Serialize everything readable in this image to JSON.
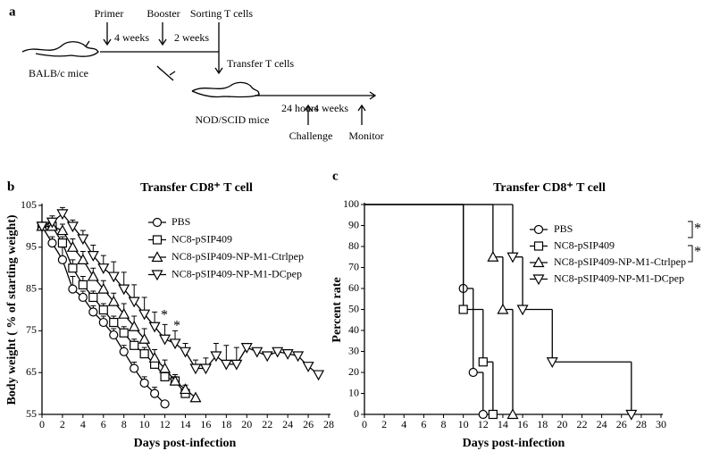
{
  "diagram": {
    "panel": "a",
    "primer": "Primer",
    "booster": "Booster",
    "sorting": "Sorting T cells",
    "interval1": "4 weeks",
    "interval2": "2 weeks",
    "transfer": "Transfer T cells",
    "donor": "BALB/c mice",
    "recipient": "NOD/SCID mice",
    "interval3": "24 hours",
    "interval4": "4 weeks",
    "challenge": "Challenge",
    "monitor": "Monitor"
  },
  "chart_data": [
    {
      "type": "line",
      "panel": "b",
      "title": "Transfer CD8⁺ T cell",
      "xlabel": "Days post-infection",
      "ylabel": "Body weight ( % of starting weight)",
      "xlim": [
        0,
        28
      ],
      "xticks": [
        0,
        2,
        4,
        6,
        8,
        10,
        12,
        14,
        16,
        18,
        20,
        22,
        24,
        26,
        28
      ],
      "ylim": [
        55,
        105
      ],
      "yticks": [
        55,
        65,
        75,
        85,
        95,
        105
      ],
      "annotations": [
        "*",
        "*"
      ],
      "series": [
        {
          "name": "PBS",
          "color": "#000000",
          "marker": "circle",
          "x": [
            0,
            1,
            2,
            3,
            4,
            5,
            6,
            7,
            8,
            9,
            10,
            11,
            12
          ],
          "values": [
            100,
            96,
            92,
            85,
            83,
            79.5,
            77,
            74,
            70,
            66,
            62.5,
            60,
            57.5
          ],
          "errors": [
            0,
            1.5,
            3,
            3,
            1.5,
            1.5,
            1.5,
            1.5,
            1.5,
            1.5,
            1.5,
            1.5,
            0
          ]
        },
        {
          "name": "NC8-pSIP409",
          "color": "#000000",
          "marker": "square",
          "x": [
            0,
            1,
            2,
            3,
            4,
            5,
            6,
            7,
            8,
            9,
            10,
            11,
            12,
            13,
            14
          ],
          "values": [
            100,
            100,
            96,
            90,
            86,
            83,
            80,
            77,
            74.5,
            71.5,
            69.5,
            67,
            64,
            63,
            60
          ],
          "errors": [
            0,
            1,
            1.5,
            2,
            2,
            1.5,
            1.5,
            1.5,
            1.5,
            1.5,
            1.5,
            1.5,
            1.5,
            1,
            1
          ]
        },
        {
          "name": "NC8-pSIP409-NP-M1-Ctrlpep",
          "color": "#000000",
          "marker": "triangle-up",
          "x": [
            0,
            1,
            2,
            3,
            4,
            5,
            6,
            7,
            8,
            9,
            10,
            11,
            12,
            13,
            14,
            15
          ],
          "values": [
            100,
            100,
            99,
            95,
            92,
            88,
            85,
            82,
            79,
            76,
            73,
            68.5,
            66,
            63,
            61,
            59
          ],
          "errors": [
            0,
            1,
            1.5,
            2,
            2,
            2,
            2,
            2,
            2.5,
            2.5,
            2.5,
            2,
            2,
            1.5,
            1,
            0
          ]
        },
        {
          "name": "NC8-pSIP409-NP-M1-DCpep",
          "color": "#000000",
          "marker": "triangle-down",
          "x": [
            0,
            1,
            2,
            3,
            4,
            5,
            6,
            7,
            8,
            9,
            10,
            11,
            12,
            13,
            14,
            15,
            16,
            17,
            18,
            19,
            20,
            21,
            22,
            23,
            24,
            25,
            26,
            27
          ],
          "values": [
            100,
            101,
            103,
            100,
            97,
            93,
            90,
            88,
            85,
            82,
            79,
            76,
            73,
            72,
            70,
            66,
            66,
            69,
            67,
            67,
            71,
            70,
            69,
            70,
            69.5,
            69,
            66.5,
            64.5
          ],
          "errors": [
            0,
            1.5,
            1.5,
            1.5,
            2,
            2.5,
            3,
            3.5,
            4,
            4,
            4,
            3.5,
            3.5,
            3,
            2,
            2,
            2.5,
            3,
            4.5,
            4,
            1,
            0,
            0,
            0,
            0,
            0,
            0,
            0
          ]
        }
      ]
    },
    {
      "type": "step",
      "panel": "c",
      "title": "Transfer CD8⁺ T cell",
      "xlabel": "Days post-infection",
      "ylabel": "Percent rate",
      "xlim": [
        0,
        30
      ],
      "xticks": [
        0,
        2,
        4,
        6,
        8,
        10,
        12,
        14,
        16,
        18,
        20,
        22,
        24,
        26,
        28,
        30
      ],
      "ylim": [
        0,
        100
      ],
      "yticks": [
        0,
        10,
        20,
        30,
        40,
        50,
        60,
        70,
        80,
        90,
        100
      ],
      "annotations": [
        "*",
        "*"
      ],
      "series": [
        {
          "name": "PBS",
          "color": "#000000",
          "marker": "circle",
          "x": [
            0,
            10,
            11,
            12
          ],
          "values": [
            100,
            60,
            20,
            0
          ]
        },
        {
          "name": "NC8-pSIP409",
          "color": "#000000",
          "marker": "square",
          "x": [
            0,
            10,
            12,
            13
          ],
          "values": [
            100,
            50,
            25,
            0
          ]
        },
        {
          "name": "NC8-pSIP409-NP-M1-Ctrlpep",
          "color": "#000000",
          "marker": "triangle-up",
          "x": [
            0,
            13,
            14,
            15
          ],
          "values": [
            100,
            75,
            50,
            0
          ]
        },
        {
          "name": "NC8-pSIP409-NP-M1-DCpep",
          "color": "#000000",
          "marker": "triangle-down",
          "x": [
            0,
            15,
            16,
            19,
            27
          ],
          "values": [
            100,
            75,
            50,
            25,
            0
          ]
        }
      ]
    }
  ]
}
